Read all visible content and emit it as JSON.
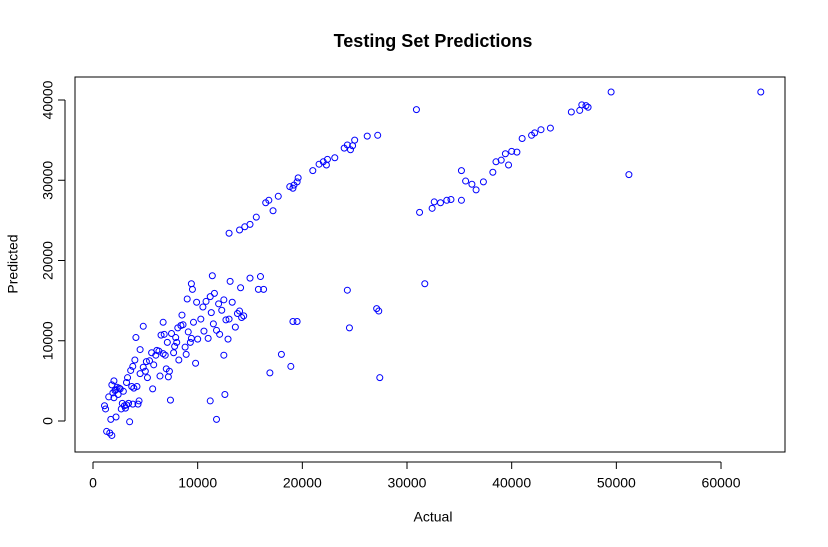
{
  "chart_data": {
    "type": "scatter",
    "title": "Testing Set Predictions",
    "x_label": "Actual",
    "y_label": "Predicted",
    "color": "#0000ff",
    "xlim": [
      -1720,
      66113
    ],
    "ylim": [
      -3863,
      42866
    ],
    "xticks": [
      0,
      10000,
      20000,
      30000,
      40000,
      50000,
      60000
    ],
    "yticks": [
      0,
      10000,
      20000,
      30000,
      40000
    ],
    "x": [
      13000,
      14000,
      14500,
      15000,
      15600,
      16500,
      16800,
      17200,
      17700,
      18800,
      19200,
      19100,
      19500,
      19600,
      21000,
      21600,
      22000,
      22300,
      22400,
      23100,
      24000,
      24300,
      24600,
      24800,
      25000,
      26200,
      27200,
      30900,
      31200,
      32400,
      32600,
      33200,
      33800,
      34200,
      35200,
      35200,
      35600,
      36200,
      36600,
      37300,
      38200,
      38500,
      39000,
      39400,
      39700,
      40000,
      40500,
      41000,
      41900,
      42200,
      42800,
      43700,
      45700,
      46500,
      46700,
      47100,
      47300,
      49500,
      51200,
      63800,
      16900,
      18000,
      18900,
      19100,
      19500,
      24300,
      24500,
      27100,
      27300,
      27400,
      31700,
      11200,
      11800,
      12600,
      12500,
      7400,
      15000,
      15800,
      16300,
      16000,
      1100,
      1200,
      1300,
      1500,
      1600,
      1700,
      1800,
      1800,
      1900,
      2000,
      2000,
      2100,
      2200,
      2300,
      2400,
      2600,
      2700,
      2800,
      2900,
      3000,
      3100,
      3200,
      3300,
      3400,
      3500,
      3600,
      3700,
      3800,
      3800,
      3900,
      4000,
      4100,
      4300,
      4400,
      4500,
      4500,
      4800,
      4800,
      5000,
      5200,
      5400,
      5600,
      5700,
      5800,
      6000,
      6100,
      6300,
      6400,
      6500,
      6700,
      6700,
      6900,
      7000,
      7100,
      7200,
      7300,
      7500,
      7700,
      7800,
      7900,
      8000,
      8100,
      8200,
      8400,
      8500,
      8600,
      8800,
      8900,
      9000,
      9100,
      9300,
      9400,
      9400,
      9500,
      9600,
      9800,
      9900,
      10000,
      10300,
      10500,
      10600,
      10800,
      11000,
      11200,
      11300,
      11400,
      11500,
      11600,
      11800,
      12000,
      12100,
      12300,
      12500,
      12700,
      12900,
      13000,
      13100,
      13300,
      13600,
      13800,
      14000,
      14100,
      14200,
      14400,
      2500,
      3200,
      2200,
      4200,
      5100,
      6800
    ],
    "values": [
      23400,
      23800,
      24200,
      24500,
      25400,
      27200,
      27500,
      26200,
      28000,
      29200,
      29400,
      29000,
      29800,
      30300,
      31200,
      32000,
      32300,
      31900,
      32600,
      32800,
      34000,
      34400,
      33800,
      34300,
      35000,
      35500,
      35600,
      38800,
      26000,
      26500,
      27300,
      27200,
      27500,
      27600,
      31200,
      27500,
      29900,
      29500,
      28800,
      29800,
      31000,
      32300,
      32500,
      33300,
      31900,
      33600,
      33500,
      35200,
      35600,
      35900,
      36300,
      36500,
      38500,
      38700,
      39400,
      39300,
      39100,
      41000,
      30700,
      41000,
      6000,
      8300,
      6800,
      12400,
      12400,
      16300,
      11600,
      14000,
      13700,
      5400,
      17100,
      2500,
      200,
      3300,
      8200,
      2600,
      17800,
      16400,
      16400,
      18000,
      1900,
      1500,
      -1300,
      3000,
      -1500,
      200,
      4500,
      -1800,
      3500,
      2900,
      5000,
      3800,
      500,
      4200,
      3300,
      4000,
      1500,
      2200,
      3700,
      1900,
      1600,
      4800,
      5400,
      2200,
      -100,
      6300,
      4300,
      2100,
      6800,
      4100,
      7600,
      10400,
      2100,
      2500,
      5900,
      8900,
      6700,
      11800,
      6200,
      5400,
      7500,
      8500,
      4000,
      7000,
      8200,
      8800,
      8700,
      5600,
      10700,
      12300,
      8400,
      8200,
      6500,
      9800,
      5500,
      6200,
      10900,
      8500,
      9300,
      10400,
      9800,
      11600,
      7600,
      11900,
      13200,
      12000,
      9200,
      8300,
      15200,
      11100,
      9800,
      10300,
      17100,
      16400,
      12300,
      7200,
      14800,
      10200,
      12700,
      14200,
      11200,
      14900,
      10300,
      15500,
      13500,
      18100,
      12100,
      15900,
      11300,
      14600,
      10800,
      13800,
      15100,
      12600,
      10200,
      12700,
      17400,
      14800,
      11700,
      13400,
      13700,
      16600,
      12900,
      13100,
      4100,
      2000,
      3900,
      4300,
      7400,
      10800
    ]
  }
}
